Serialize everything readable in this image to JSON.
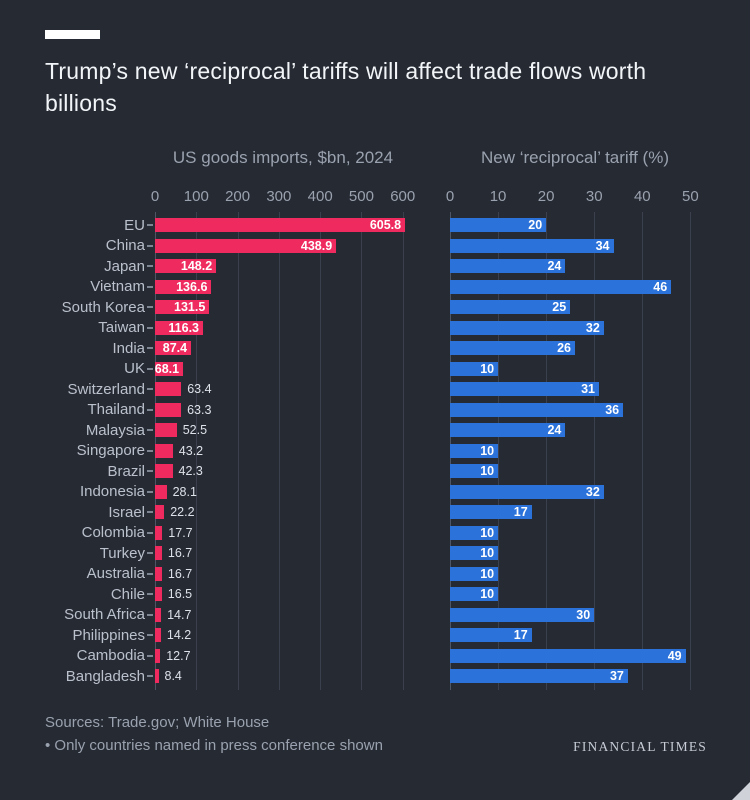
{
  "title": "Trump’s new ‘reciprocal’ tariffs will affect trade flows worth billions",
  "colors": {
    "background": "#262a33",
    "accent_bar": "#ffffff",
    "imports_bar": "#ee2a5e",
    "tariff_bar": "#2b72da"
  },
  "chart_data": {
    "type": "bar",
    "orientation": "horizontal",
    "title": "Trump’s new ‘reciprocal’ tariffs will affect trade flows worth billions",
    "categories": [
      "EU",
      "China",
      "Japan",
      "Vietnam",
      "South Korea",
      "Taiwan",
      "India",
      "UK",
      "Switzerland",
      "Thailand",
      "Malaysia",
      "Singapore",
      "Brazil",
      "Indonesia",
      "Israel",
      "Colombia",
      "Turkey",
      "Australia",
      "Chile",
      "South Africa",
      "Philippines",
      "Cambodia",
      "Bangladesh"
    ],
    "series": [
      {
        "name": "US goods imports, $bn, 2024",
        "color": "#ee2a5e",
        "values": [
          605.8,
          438.9,
          148.2,
          136.6,
          131.5,
          116.3,
          87.4,
          68.1,
          63.4,
          63.3,
          52.5,
          43.2,
          42.3,
          28.1,
          22.2,
          17.7,
          16.7,
          16.7,
          16.5,
          14.7,
          14.2,
          12.7,
          8.4
        ]
      },
      {
        "name": "New ‘reciprocal’ tariff (%)",
        "color": "#2b72da",
        "values": [
          20,
          34,
          24,
          46,
          25,
          32,
          26,
          10,
          31,
          36,
          24,
          10,
          10,
          32,
          17,
          10,
          10,
          10,
          10,
          30,
          17,
          49,
          37
        ]
      }
    ],
    "axes": [
      {
        "ticks": [
          0,
          100,
          200,
          300,
          400,
          500,
          600
        ],
        "max": 620
      },
      {
        "ticks": [
          0,
          10,
          20,
          30,
          40,
          50
        ],
        "max": 52
      }
    ],
    "grid": true,
    "legend": "none"
  },
  "footer": {
    "sources": "Sources: Trade.gov; White House",
    "note": "• Only countries named in press conference shown",
    "brand": "FINANCIAL TIMES"
  }
}
